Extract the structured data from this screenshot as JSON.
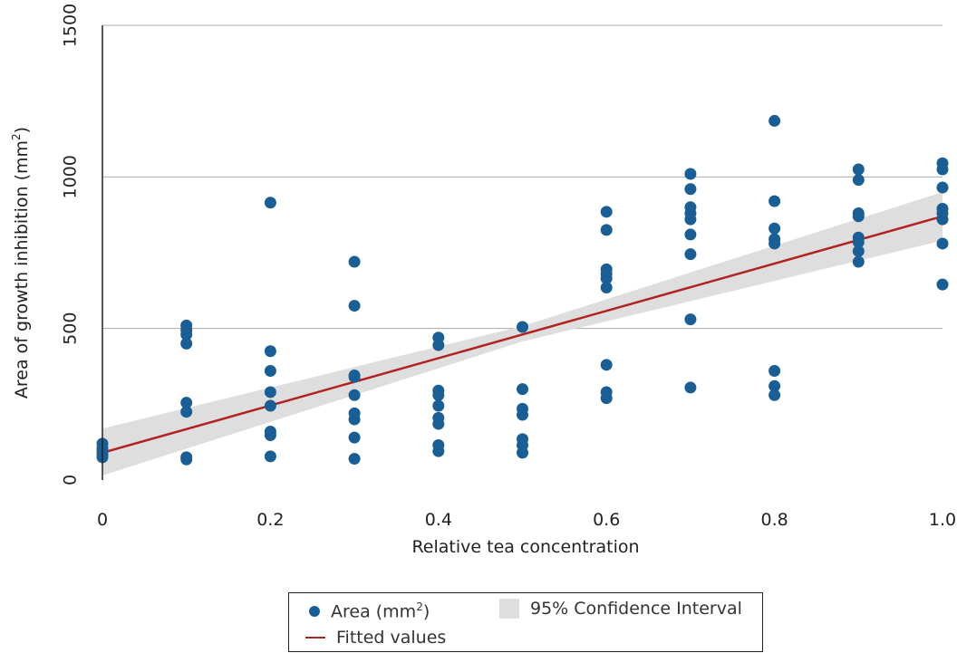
{
  "colors": {
    "points": "#1a5e96",
    "fit": "#b22222",
    "ci": "#dedede",
    "grid": "#aaaaaa",
    "axis": "#222222"
  },
  "legend": {
    "area_label": "Area (mm",
    "area_sup": "2",
    "area_close": ")",
    "ci_label": "95% Confidence Interval",
    "fit_label": "Fitted values"
  },
  "chart_data": {
    "type": "scatter",
    "title": "",
    "xlabel": "Relative tea concentration",
    "ylabel_main": "Area of growth inhibition (mm",
    "ylabel_sup": "2",
    "ylabel_close": ")",
    "xlim": [
      0,
      1.0
    ],
    "ylim": [
      0,
      1500
    ],
    "xticks": [
      0,
      0.2,
      0.4,
      0.6,
      0.8,
      1.0
    ],
    "xtick_labels": [
      "0",
      "0.2",
      "0.4",
      "0.6",
      "0.8",
      "1.0"
    ],
    "yticks": [
      0,
      500,
      1000,
      1500
    ],
    "ytick_labels": [
      "0",
      "500",
      "1000",
      "1500"
    ],
    "grid": "horizontal",
    "legend_position": "bottom",
    "series": [
      {
        "name": "Area (mm2)",
        "type": "scatter",
        "points": [
          [
            0,
            120
          ],
          [
            0,
            105
          ],
          [
            0,
            95
          ],
          [
            0,
            85
          ],
          [
            0,
            75
          ],
          [
            0.1,
            510
          ],
          [
            0.1,
            495
          ],
          [
            0.1,
            480
          ],
          [
            0.1,
            450
          ],
          [
            0.1,
            255
          ],
          [
            0.1,
            225
          ],
          [
            0.1,
            75
          ],
          [
            0.1,
            68
          ],
          [
            0.2,
            915
          ],
          [
            0.2,
            425
          ],
          [
            0.2,
            360
          ],
          [
            0.2,
            290
          ],
          [
            0.2,
            245
          ],
          [
            0.2,
            160
          ],
          [
            0.2,
            148
          ],
          [
            0.2,
            78
          ],
          [
            0.3,
            720
          ],
          [
            0.3,
            575
          ],
          [
            0.3,
            345
          ],
          [
            0.3,
            340
          ],
          [
            0.3,
            280
          ],
          [
            0.3,
            220
          ],
          [
            0.3,
            200
          ],
          [
            0.3,
            140
          ],
          [
            0.3,
            70
          ],
          [
            0.4,
            470
          ],
          [
            0.4,
            445
          ],
          [
            0.4,
            295
          ],
          [
            0.4,
            280
          ],
          [
            0.4,
            245
          ],
          [
            0.4,
            205
          ],
          [
            0.4,
            185
          ],
          [
            0.4,
            115
          ],
          [
            0.4,
            95
          ],
          [
            0.5,
            505
          ],
          [
            0.5,
            300
          ],
          [
            0.5,
            235
          ],
          [
            0.5,
            215
          ],
          [
            0.5,
            135
          ],
          [
            0.5,
            115
          ],
          [
            0.5,
            90
          ],
          [
            0.6,
            885
          ],
          [
            0.6,
            825
          ],
          [
            0.6,
            695
          ],
          [
            0.6,
            680
          ],
          [
            0.6,
            665
          ],
          [
            0.6,
            635
          ],
          [
            0.6,
            380
          ],
          [
            0.6,
            290
          ],
          [
            0.6,
            270
          ],
          [
            0.7,
            1010
          ],
          [
            0.7,
            960
          ],
          [
            0.7,
            900
          ],
          [
            0.7,
            880
          ],
          [
            0.7,
            860
          ],
          [
            0.7,
            810
          ],
          [
            0.7,
            745
          ],
          [
            0.7,
            530
          ],
          [
            0.7,
            305
          ],
          [
            0.8,
            1185
          ],
          [
            0.8,
            920
          ],
          [
            0.8,
            830
          ],
          [
            0.8,
            795
          ],
          [
            0.8,
            780
          ],
          [
            0.8,
            360
          ],
          [
            0.8,
            310
          ],
          [
            0.8,
            280
          ],
          [
            0.9,
            1025
          ],
          [
            0.9,
            990
          ],
          [
            0.9,
            880
          ],
          [
            0.9,
            870
          ],
          [
            0.9,
            800
          ],
          [
            0.9,
            785
          ],
          [
            0.9,
            755
          ],
          [
            0.9,
            720
          ],
          [
            1.0,
            1045
          ],
          [
            1.0,
            1025
          ],
          [
            1.0,
            965
          ],
          [
            1.0,
            895
          ],
          [
            1.0,
            880
          ],
          [
            1.0,
            860
          ],
          [
            1.0,
            780
          ],
          [
            1.0,
            645
          ]
        ]
      },
      {
        "name": "Fitted values",
        "type": "line",
        "x": [
          0,
          1.0
        ],
        "y": [
          90,
          870
        ]
      },
      {
        "name": "95% Confidence Interval",
        "type": "area",
        "x": [
          0,
          0.5,
          1.0
        ],
        "lower": [
          15,
          457,
          790
        ],
        "upper": [
          170,
          508,
          950
        ]
      }
    ]
  }
}
